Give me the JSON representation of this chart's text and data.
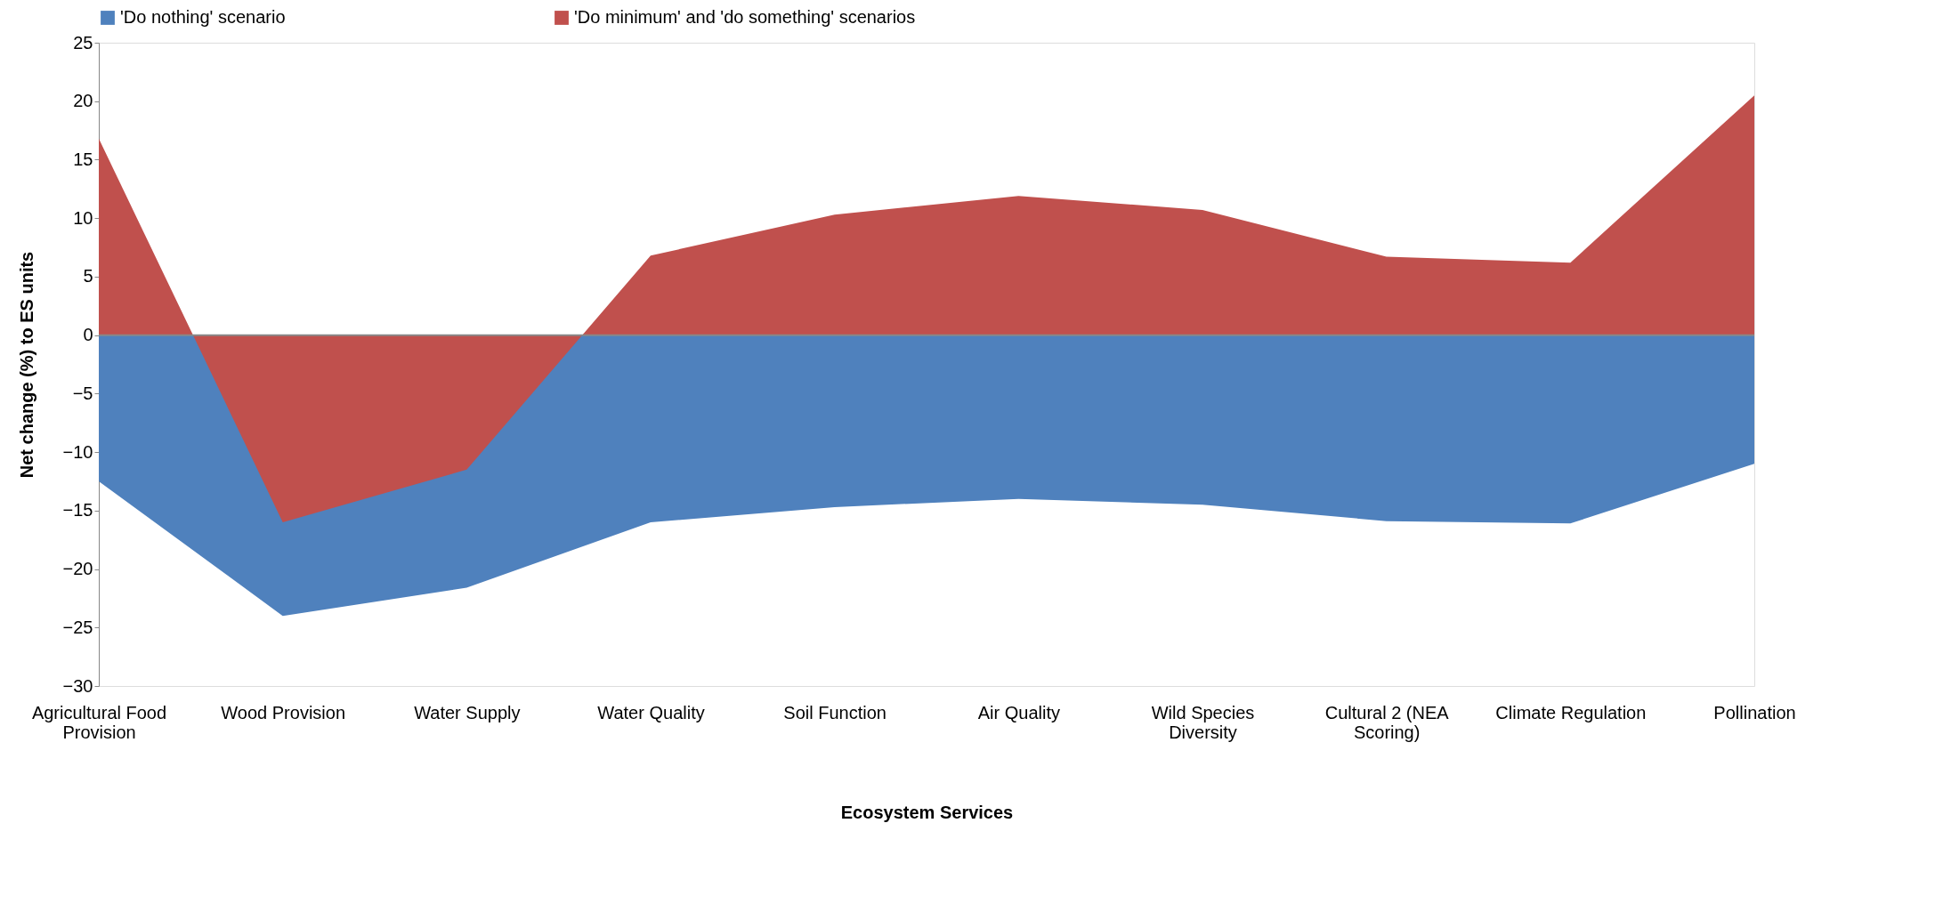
{
  "chart_data": {
    "type": "area",
    "xlabel": "Ecosystem Services",
    "ylabel": "Net change (%) to ES units",
    "categories": [
      "Agricultural Food Provision",
      "Wood Provision",
      "Water Supply",
      "Water Quality",
      "Soil Function",
      "Air Quality",
      "Wild Species Diversity",
      "Cultural 2 (NEA Scoring)",
      "Climate Regulation",
      "Pollination"
    ],
    "series": [
      {
        "name": "'Do nothing' scenario",
        "color": "#4f81bd",
        "values": [
          -12.5,
          -24,
          -21.6,
          -16,
          -14.7,
          -14,
          -14.5,
          -15.9,
          -16.1,
          -11
        ]
      },
      {
        "name": "'Do minimum' and 'do something' scenarios",
        "color": "#c0504d",
        "values": [
          16.8,
          -16,
          -11.5,
          6.8,
          10.3,
          11.9,
          10.7,
          6.7,
          6.2,
          20.5
        ]
      }
    ],
    "ylim": [
      -30,
      25
    ],
    "yticks": [
      -30,
      -25,
      -20,
      -15,
      -10,
      -5,
      0,
      5,
      10,
      15,
      20,
      25
    ],
    "ref_lines": [
      {
        "axis": "y",
        "value": 0,
        "color": "#888888"
      }
    ],
    "grid": false,
    "legend": "top"
  }
}
